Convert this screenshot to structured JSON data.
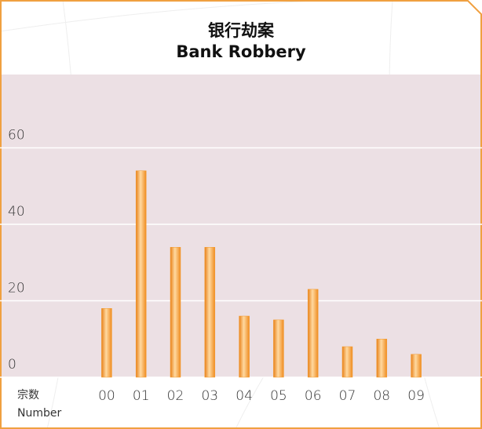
{
  "chart_data": {
    "type": "bar",
    "title": "银行劫案",
    "subtitle": "Bank Robbery",
    "y_label": [
      "宗数",
      "Number"
    ],
    "categories": [
      "00",
      "01",
      "02",
      "03",
      "04",
      "05",
      "06",
      "07",
      "08",
      "09"
    ],
    "values": [
      18,
      54,
      34,
      34,
      16,
      15,
      23,
      8,
      10,
      6
    ],
    "color": "#f39a2c",
    "ylim": [
      0,
      80
    ],
    "yticks": [
      0,
      20,
      40,
      60
    ],
    "grid": true
  }
}
